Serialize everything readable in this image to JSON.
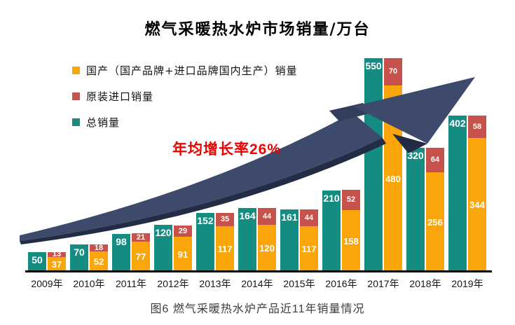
{
  "chart_data": {
    "type": "bar",
    "title": "燃气采暖热水炉市场销量/万台",
    "caption": "图6 燃气采暖热水炉产品近11年销量情况",
    "annotation": {
      "text": "年均增长率26%",
      "color": "#ee0000"
    },
    "categories": [
      "2009年",
      "2010年",
      "2011年",
      "2012年",
      "2013年",
      "2014年",
      "2015年",
      "2016年",
      "2017年",
      "2018年",
      "2019年"
    ],
    "series": [
      {
        "name": "国产（国产品牌+进口品牌国内生产）销量",
        "color": "#faa50a",
        "values": [
          37,
          52,
          77,
          91,
          117,
          120,
          117,
          158,
          480,
          256,
          344
        ]
      },
      {
        "name": "原装进口销量",
        "color": "#c6524b",
        "values": [
          13,
          18,
          21,
          29,
          35,
          44,
          44,
          52,
          70,
          64,
          58
        ]
      },
      {
        "name": "总销量",
        "color": "#148c82",
        "values": [
          50,
          70,
          98,
          120,
          152,
          164,
          161,
          210,
          550,
          320,
          402
        ]
      }
    ],
    "ylim": [
      0,
      560
    ],
    "grid": false,
    "legend_position": "top-left",
    "bar_label_color": "#ffffff",
    "axis_line_color": "#000000",
    "arrow_color": "#3d4a6b"
  }
}
